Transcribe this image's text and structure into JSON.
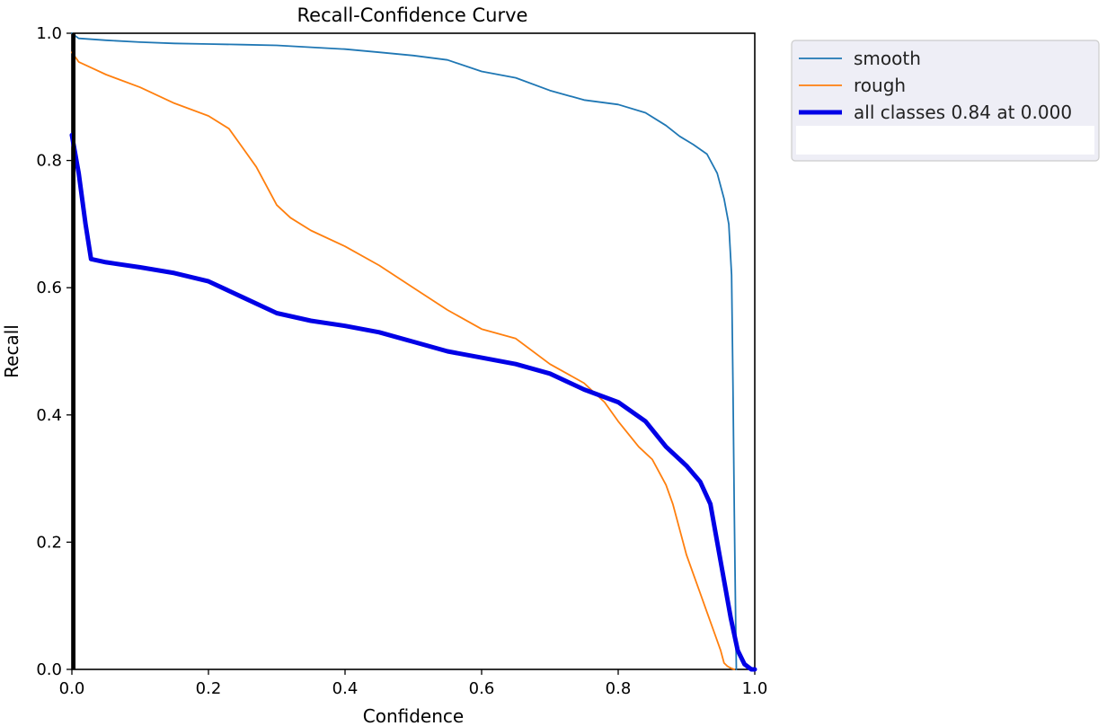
{
  "chart_data": {
    "type": "line",
    "title": "Recall-Confidence Curve",
    "xlabel": "Confidence",
    "ylabel": "Recall",
    "xlim": [
      0,
      1
    ],
    "ylim": [
      0,
      1
    ],
    "xticks": [
      "0.0",
      "0.2",
      "0.4",
      "0.6",
      "0.8",
      "1.0"
    ],
    "yticks": [
      "0.0",
      "0.2",
      "0.4",
      "0.6",
      "0.8",
      "1.0"
    ],
    "grid": false,
    "legend_position": "outside-top-right",
    "series": [
      {
        "name": "smooth",
        "color": "#1f77b4",
        "x": [
          0.0,
          0.002,
          0.01,
          0.05,
          0.1,
          0.15,
          0.2,
          0.25,
          0.3,
          0.35,
          0.4,
          0.45,
          0.5,
          0.55,
          0.6,
          0.65,
          0.7,
          0.75,
          0.8,
          0.84,
          0.87,
          0.89,
          0.91,
          0.93,
          0.945,
          0.955,
          0.962,
          0.966,
          0.968,
          0.97,
          0.972,
          0.973
        ],
        "y": [
          1.0,
          0.998,
          0.992,
          0.989,
          0.986,
          0.984,
          0.983,
          0.982,
          0.981,
          0.978,
          0.975,
          0.97,
          0.965,
          0.958,
          0.94,
          0.93,
          0.91,
          0.895,
          0.888,
          0.875,
          0.855,
          0.838,
          0.825,
          0.81,
          0.78,
          0.74,
          0.7,
          0.62,
          0.45,
          0.25,
          0.08,
          0.0
        ]
      },
      {
        "name": "rough",
        "color": "#ff7f0e",
        "x": [
          0.0,
          0.01,
          0.03,
          0.05,
          0.1,
          0.15,
          0.2,
          0.23,
          0.25,
          0.27,
          0.28,
          0.3,
          0.32,
          0.35,
          0.4,
          0.45,
          0.5,
          0.55,
          0.6,
          0.65,
          0.7,
          0.75,
          0.78,
          0.8,
          0.83,
          0.85,
          0.87,
          0.88,
          0.89,
          0.9,
          0.91,
          0.92,
          0.93,
          0.94,
          0.95,
          0.955,
          0.96,
          0.965,
          0.97
        ],
        "y": [
          0.97,
          0.955,
          0.945,
          0.935,
          0.915,
          0.89,
          0.87,
          0.85,
          0.82,
          0.79,
          0.77,
          0.73,
          0.71,
          0.69,
          0.665,
          0.635,
          0.6,
          0.565,
          0.535,
          0.52,
          0.48,
          0.45,
          0.42,
          0.39,
          0.35,
          0.33,
          0.29,
          0.26,
          0.22,
          0.18,
          0.15,
          0.12,
          0.09,
          0.06,
          0.03,
          0.01,
          0.005,
          0.002,
          0.0
        ]
      },
      {
        "name": "all classes 0.84 at 0.000",
        "color": "#0000e6",
        "x": [
          0.0,
          0.01,
          0.02,
          0.028,
          0.05,
          0.1,
          0.15,
          0.2,
          0.25,
          0.3,
          0.35,
          0.4,
          0.45,
          0.5,
          0.55,
          0.6,
          0.65,
          0.7,
          0.75,
          0.8,
          0.84,
          0.87,
          0.9,
          0.92,
          0.935,
          0.945,
          0.955,
          0.965,
          0.975,
          0.985,
          0.995,
          1.0
        ],
        "y": [
          0.84,
          0.78,
          0.7,
          0.645,
          0.64,
          0.632,
          0.623,
          0.61,
          0.585,
          0.56,
          0.548,
          0.54,
          0.53,
          0.515,
          0.5,
          0.49,
          0.48,
          0.465,
          0.44,
          0.42,
          0.39,
          0.35,
          0.32,
          0.295,
          0.26,
          0.2,
          0.14,
          0.08,
          0.03,
          0.008,
          0.0,
          0.0
        ]
      }
    ]
  }
}
